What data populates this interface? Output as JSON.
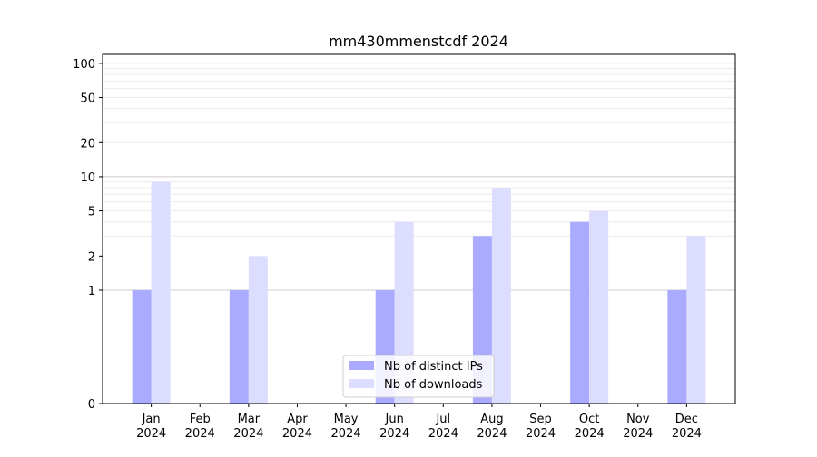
{
  "chart_data": {
    "type": "bar",
    "title": "mm430mmenstcdf 2024",
    "xlabel": "",
    "ylabel": "",
    "yscale": "symlog",
    "ylim": [
      0,
      120
    ],
    "grid": "horizontal",
    "legend_position": "bottom-center",
    "categories": [
      [
        "Jan",
        "2024"
      ],
      [
        "Feb",
        "2024"
      ],
      [
        "Mar",
        "2024"
      ],
      [
        "Apr",
        "2024"
      ],
      [
        "May",
        "2024"
      ],
      [
        "Jun",
        "2024"
      ],
      [
        "Jul",
        "2024"
      ],
      [
        "Aug",
        "2024"
      ],
      [
        "Sep",
        "2024"
      ],
      [
        "Oct",
        "2024"
      ],
      [
        "Nov",
        "2024"
      ],
      [
        "Dec",
        "2024"
      ]
    ],
    "series": [
      {
        "name": "Nb of distinct IPs",
        "color": "#aaaaff",
        "values": [
          1,
          0,
          1,
          0,
          0,
          1,
          0,
          3,
          0,
          4,
          0,
          1
        ]
      },
      {
        "name": "Nb of downloads",
        "color": "#ddddff",
        "values": [
          9,
          0,
          2,
          0,
          0,
          4,
          0,
          8,
          0,
          5,
          0,
          3
        ]
      }
    ],
    "yticks": [
      {
        "value": 0,
        "label": "0"
      },
      {
        "value": 1,
        "label": "1"
      },
      {
        "value": 2,
        "label": "2"
      },
      {
        "value": 5,
        "label": "5"
      },
      {
        "value": 10,
        "label": "10"
      },
      {
        "value": 20,
        "label": "20"
      },
      {
        "value": 50,
        "label": "50"
      },
      {
        "value": 100,
        "label": "100"
      }
    ]
  }
}
